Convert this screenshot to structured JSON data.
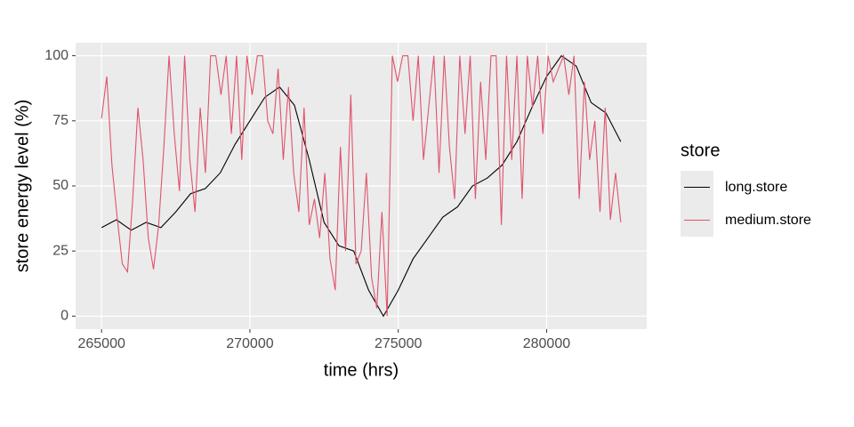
{
  "chart_data": {
    "type": "line",
    "x_label": "time (hrs)",
    "y_label": "store energy level (%)",
    "xlim": [
      264125,
      283375
    ],
    "ylim": [
      -5,
      105
    ],
    "xticks": [
      265000,
      270000,
      275000,
      280000
    ],
    "yticks": [
      0,
      25,
      50,
      75,
      100
    ],
    "grid": true,
    "legend_title": "store",
    "legend_position": "right",
    "series": [
      {
        "name": "long.store",
        "color": "#000000",
        "x": [
          265000,
          265500,
          266000,
          266500,
          267000,
          267500,
          268000,
          268500,
          269000,
          269500,
          270000,
          270500,
          271000,
          271500,
          272000,
          272500,
          273000,
          273500,
          274000,
          274500,
          275000,
          275500,
          276000,
          276500,
          277000,
          277500,
          278000,
          278500,
          279000,
          279500,
          280000,
          280500,
          281000,
          281500,
          282000,
          282500
        ],
        "values": [
          34,
          37,
          33,
          36,
          34,
          40,
          47,
          49,
          55,
          66,
          75,
          84,
          88,
          81,
          60,
          36,
          27,
          25,
          10,
          0,
          10,
          22,
          30,
          38,
          42,
          50,
          53,
          58,
          67,
          80,
          92,
          100,
          96,
          82,
          78,
          67
        ]
      },
      {
        "name": "medium.store",
        "color": "#df536b",
        "x": [
          265000,
          265175,
          265350,
          265525,
          265700,
          265875,
          266050,
          266225,
          266400,
          266575,
          266750,
          266925,
          267100,
          267275,
          267450,
          267625,
          267800,
          267975,
          268150,
          268325,
          268500,
          268675,
          268850,
          269025,
          269200,
          269375,
          269550,
          269725,
          269900,
          270075,
          270250,
          270425,
          270600,
          270775,
          270950,
          271125,
          271300,
          271475,
          271650,
          271825,
          272000,
          272175,
          272350,
          272525,
          272700,
          272875,
          273050,
          273225,
          273400,
          273575,
          273750,
          273925,
          274100,
          274275,
          274450,
          274625,
          274800,
          274975,
          275150,
          275325,
          275500,
          275675,
          275850,
          276025,
          276200,
          276375,
          276550,
          276725,
          276900,
          277075,
          277250,
          277425,
          277600,
          277775,
          277950,
          278125,
          278300,
          278475,
          278650,
          278825,
          279000,
          279175,
          279350,
          279525,
          279700,
          279875,
          280050,
          280225,
          280400,
          280575,
          280750,
          280925,
          281100,
          281275,
          281450,
          281625,
          281800,
          281975,
          282150,
          282325,
          282500
        ],
        "values": [
          76,
          92,
          58,
          38,
          20,
          17,
          45,
          80,
          60,
          30,
          18,
          35,
          65,
          100,
          70,
          48,
          100,
          60,
          40,
          80,
          55,
          100,
          100,
          85,
          100,
          70,
          100,
          60,
          100,
          85,
          100,
          100,
          75,
          70,
          95,
          60,
          88,
          55,
          40,
          80,
          35,
          45,
          30,
          55,
          22,
          10,
          65,
          25,
          85,
          20,
          25,
          55,
          15,
          3,
          40,
          0,
          100,
          90,
          100,
          100,
          75,
          100,
          60,
          80,
          100,
          55,
          100,
          65,
          45,
          100,
          70,
          100,
          45,
          90,
          60,
          100,
          100,
          35,
          100,
          60,
          100,
          45,
          100,
          80,
          100,
          70,
          100,
          90,
          95,
          100,
          85,
          100,
          45,
          90,
          60,
          75,
          40,
          80,
          37,
          55,
          36
        ]
      }
    ]
  }
}
